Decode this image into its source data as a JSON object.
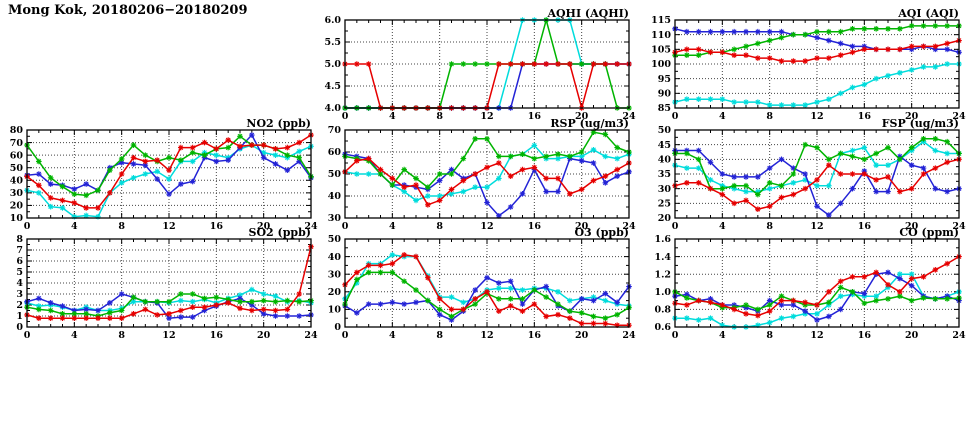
{
  "page_title": "Mong Kok, 20180206−20180209",
  "x_axis": {
    "x_start": 0,
    "x_step": 1,
    "min": 0,
    "max": 24,
    "major_ticks": [
      0,
      4,
      8,
      12,
      16,
      20,
      24
    ],
    "minor_step": 1,
    "unit": "hour"
  },
  "series_colors": {
    "red": "#e60000",
    "green": "#00b400",
    "blue": "#2323d6",
    "cyan": "#00dcdc"
  },
  "grid": {
    "style": "dotted",
    "color": "#444444"
  },
  "chart_data": [
    {
      "type": "line",
      "title": "AQHI (AQHI)",
      "ylim": [
        4.0,
        6.0
      ],
      "ytick_labels": [
        "4.0",
        "4.5",
        "5.0",
        "5.5",
        "6.0"
      ],
      "xtick_labels": [
        "0",
        "4",
        "8",
        "12",
        "16",
        "20",
        "24"
      ],
      "legend": "none",
      "series": [
        {
          "name": "red",
          "values": [
            5,
            5,
            5,
            4,
            4,
            4,
            4,
            4,
            4,
            4,
            4,
            4,
            4,
            5,
            5,
            5,
            5,
            5,
            5,
            5,
            4,
            5,
            5,
            5,
            5
          ]
        },
        {
          "name": "green",
          "values": [
            4,
            4,
            4,
            4,
            4,
            4,
            4,
            4,
            4,
            5,
            5,
            5,
            5,
            5,
            5,
            5,
            5,
            6,
            5,
            5,
            5,
            5,
            5,
            4,
            4
          ]
        },
        {
          "name": "blue",
          "values": [
            4,
            4,
            4,
            4,
            4,
            4,
            4,
            4,
            4,
            4,
            4,
            4,
            4,
            4,
            4,
            5,
            5,
            5,
            5,
            5,
            5,
            5,
            5,
            5,
            5
          ]
        },
        {
          "name": "cyan",
          "values": [
            4,
            4,
            4,
            4,
            4,
            4,
            4,
            4,
            4,
            4,
            4,
            4,
            4,
            4,
            5,
            6,
            6,
            6,
            6,
            6,
            5,
            5,
            5,
            5,
            5
          ]
        }
      ]
    },
    {
      "type": "line",
      "title": "AQI (AQI)",
      "ylim": [
        85,
        115
      ],
      "ytick_labels": [
        "85",
        "90",
        "95",
        "100",
        "105",
        "110",
        "115"
      ],
      "xtick_labels": [
        "0",
        "4",
        "8",
        "12",
        "16",
        "20",
        "24"
      ],
      "legend": "none",
      "series": [
        {
          "name": "red",
          "values": [
            104,
            105,
            105,
            104,
            104,
            103,
            103,
            102,
            102,
            101,
            101,
            101,
            102,
            102,
            103,
            104,
            105,
            105,
            105,
            105,
            106,
            106,
            106,
            107,
            108
          ]
        },
        {
          "name": "green",
          "values": [
            103,
            103,
            103,
            104,
            104,
            105,
            106,
            107,
            108,
            109,
            110,
            110,
            111,
            111,
            111,
            112,
            112,
            112,
            112,
            112,
            113,
            113,
            113,
            113,
            113
          ]
        },
        {
          "name": "blue",
          "values": [
            112,
            111,
            111,
            111,
            111,
            111,
            111,
            111,
            111,
            111,
            110,
            110,
            109,
            108,
            107,
            106,
            106,
            105,
            105,
            105,
            105,
            106,
            105,
            105,
            104
          ]
        },
        {
          "name": "cyan",
          "values": [
            87,
            88,
            88,
            88,
            88,
            87,
            87,
            87,
            86,
            86,
            86,
            86,
            87,
            88,
            90,
            92,
            93,
            95,
            96,
            97,
            98,
            99,
            99,
            100,
            100
          ]
        }
      ]
    },
    {
      "type": "line",
      "title": "NO2 (ppb)",
      "ylim": [
        10,
        80
      ],
      "ytick_labels": [
        "10",
        "20",
        "30",
        "40",
        "50",
        "60",
        "70",
        "80"
      ],
      "xtick_labels": [
        "0",
        "4",
        "8",
        "12",
        "16",
        "20",
        "24"
      ],
      "legend": "none",
      "series": [
        {
          "name": "red",
          "values": [
            43,
            36,
            26,
            24,
            22,
            18,
            18,
            30,
            45,
            58,
            55,
            56,
            48,
            66,
            66,
            70,
            65,
            72,
            67,
            68,
            68,
            65,
            66,
            70,
            76
          ]
        },
        {
          "name": "green",
          "values": [
            68,
            55,
            42,
            35,
            29,
            28,
            32,
            48,
            57,
            68,
            60,
            55,
            58,
            56,
            62,
            60,
            65,
            66,
            75,
            68,
            68,
            65,
            60,
            58,
            43
          ]
        },
        {
          "name": "blue",
          "values": [
            44,
            45,
            37,
            36,
            33,
            37,
            32,
            50,
            54,
            53,
            52,
            41,
            29,
            37,
            39,
            58,
            55,
            56,
            66,
            76,
            58,
            53,
            48,
            55,
            42
          ]
        },
        {
          "name": "cyan",
          "values": [
            32,
            30,
            19,
            18,
            11,
            12,
            11,
            30,
            38,
            42,
            45,
            47,
            41,
            55,
            55,
            62,
            60,
            58,
            65,
            68,
            62,
            60,
            58,
            63,
            67
          ]
        }
      ]
    },
    {
      "type": "line",
      "title": "RSP (ug/m3)",
      "ylim": [
        30,
        70
      ],
      "ytick_labels": [
        "30",
        "40",
        "50",
        "60",
        "70"
      ],
      "xtick_labels": [
        "0",
        "4",
        "8",
        "12",
        "16",
        "20",
        "24"
      ],
      "legend": "none",
      "series": [
        {
          "name": "red",
          "values": [
            51,
            56,
            57,
            52,
            48,
            44,
            45,
            36,
            38,
            43,
            47,
            50,
            53,
            55,
            49,
            52,
            53,
            48,
            48,
            41,
            43,
            47,
            49,
            52,
            55
          ]
        },
        {
          "name": "green",
          "values": [
            58,
            57,
            56,
            50,
            45,
            52,
            48,
            44,
            50,
            50,
            57,
            66,
            66,
            58,
            58,
            59,
            57,
            58,
            59,
            58,
            60,
            69,
            68,
            62,
            60
          ]
        },
        {
          "name": "blue",
          "values": [
            59,
            58,
            57,
            50,
            45,
            45,
            44,
            43,
            47,
            52,
            48,
            50,
            37,
            31,
            35,
            41,
            52,
            42,
            42,
            57,
            56,
            55,
            46,
            49,
            51
          ]
        },
        {
          "name": "cyan",
          "values": [
            51,
            50,
            50,
            50,
            45,
            42,
            38,
            40,
            40,
            41,
            42,
            44,
            44,
            48,
            58,
            59,
            63,
            57,
            57,
            58,
            58,
            61,
            58,
            57,
            59
          ]
        }
      ]
    },
    {
      "type": "line",
      "title": "FSP (ug/m3)",
      "ylim": [
        20,
        50
      ],
      "ytick_labels": [
        "20",
        "25",
        "30",
        "35",
        "40",
        "45",
        "50"
      ],
      "xtick_labels": [
        "0",
        "4",
        "8",
        "12",
        "16",
        "20",
        "24"
      ],
      "legend": "none",
      "series": [
        {
          "name": "red",
          "values": [
            31,
            32,
            32,
            30,
            28,
            25,
            26,
            23,
            24,
            27,
            28,
            30,
            33,
            38,
            35,
            35,
            35,
            33,
            34,
            29,
            30,
            35,
            37,
            39,
            40
          ]
        },
        {
          "name": "green",
          "values": [
            42,
            42,
            40,
            30,
            30,
            31,
            31,
            28,
            32,
            31,
            35,
            45,
            44,
            40,
            42,
            41,
            40,
            42,
            44,
            40,
            44,
            47,
            47,
            46,
            42
          ]
        },
        {
          "name": "blue",
          "values": [
            43,
            43,
            43,
            39,
            35,
            34,
            34,
            34,
            37,
            40,
            37,
            35,
            24,
            21,
            25,
            30,
            36,
            29,
            29,
            41,
            38,
            37,
            30,
            29,
            30
          ]
        },
        {
          "name": "cyan",
          "values": [
            38,
            37,
            37,
            33,
            31,
            30,
            29,
            29,
            30,
            31,
            32,
            33,
            31,
            31,
            42,
            43,
            44,
            38,
            38,
            40,
            43,
            46,
            43,
            42,
            42
          ]
        }
      ]
    },
    {
      "type": "line",
      "title": "SO2 (ppb)",
      "ylim": [
        0,
        8
      ],
      "ytick_labels": [
        "0",
        "1",
        "2",
        "3",
        "4",
        "5",
        "6",
        "7",
        "8"
      ],
      "xtick_labels": [
        "0",
        "4",
        "8",
        "12",
        "16",
        "20",
        "24"
      ],
      "legend": "none",
      "series": [
        {
          "name": "red",
          "values": [
            1.1,
            0.8,
            0.8,
            0.8,
            0.8,
            0.8,
            0.8,
            0.8,
            0.8,
            1.2,
            1.6,
            1.1,
            1.2,
            1.5,
            1.8,
            1.8,
            2.0,
            2.2,
            1.7,
            1.5,
            1.6,
            1.5,
            1.6,
            3.0,
            7.3
          ]
        },
        {
          "name": "green",
          "values": [
            1.8,
            1.6,
            1.5,
            1.2,
            1.2,
            1.2,
            1.0,
            1.3,
            1.5,
            2.7,
            2.3,
            2.3,
            2.3,
            3.0,
            3.0,
            2.6,
            2.7,
            2.5,
            2.3,
            2.3,
            2.4,
            2.3,
            2.4,
            2.3,
            2.4
          ]
        },
        {
          "name": "blue",
          "values": [
            2.3,
            2.6,
            2.2,
            1.9,
            1.5,
            1.6,
            1.5,
            2.2,
            3.0,
            2.7,
            2.3,
            2.2,
            0.8,
            0.9,
            0.9,
            1.5,
            1.9,
            2.3,
            2.6,
            2.0,
            1.2,
            1.0,
            1.0,
            1.0,
            1.1
          ]
        },
        {
          "name": "cyan",
          "values": [
            2.2,
            1.9,
            2.0,
            1.8,
            1.5,
            1.8,
            1.5,
            1.5,
            1.7,
            2.3,
            2.3,
            2.3,
            2.2,
            2.4,
            2.3,
            2.5,
            2.2,
            2.6,
            2.9,
            3.4,
            3.0,
            2.8,
            2.3,
            2.4,
            2.2
          ]
        }
      ]
    },
    {
      "type": "line",
      "title": "O3 (ppb)",
      "ylim": [
        0,
        50
      ],
      "ytick_labels": [
        "0",
        "10",
        "20",
        "30",
        "40",
        "50"
      ],
      "xtick_labels": [
        "0",
        "4",
        "8",
        "12",
        "16",
        "20",
        "24"
      ],
      "legend": "none",
      "series": [
        {
          "name": "red",
          "values": [
            24,
            31,
            35,
            35,
            36,
            41,
            40,
            28,
            16,
            10,
            10,
            16,
            20,
            9,
            12,
            9,
            13,
            6,
            7,
            5,
            2,
            2,
            2,
            1,
            1
          ]
        },
        {
          "name": "green",
          "values": [
            13,
            27,
            31,
            31,
            31,
            26,
            21,
            15,
            10,
            6,
            10,
            13,
            19,
            16,
            16,
            16,
            21,
            17,
            13,
            9,
            8,
            6,
            5,
            7,
            11
          ]
        },
        {
          "name": "blue",
          "values": [
            12,
            8,
            13,
            13,
            14,
            13,
            14,
            15,
            7,
            4,
            9,
            21,
            28,
            25,
            26,
            13,
            21,
            23,
            12,
            9,
            16,
            15,
            19,
            14,
            23
          ]
        },
        {
          "name": "cyan",
          "values": [
            16,
            25,
            36,
            36,
            41,
            40,
            40,
            29,
            17,
            17,
            14,
            16,
            21,
            22,
            22,
            21,
            22,
            22,
            20,
            15,
            16,
            17,
            15,
            13,
            12
          ]
        }
      ]
    },
    {
      "type": "line",
      "title": "CO (ppm)",
      "ylim": [
        0.6,
        1.6
      ],
      "ytick_labels": [
        "0.6",
        "0.8",
        "1.0",
        "1.2",
        "1.4",
        "1.6"
      ],
      "xtick_labels": [
        "0",
        "4",
        "8",
        "12",
        "16",
        "20",
        "24"
      ],
      "legend": "none",
      "series": [
        {
          "name": "red",
          "values": [
            0.87,
            0.85,
            0.9,
            0.88,
            0.85,
            0.8,
            0.75,
            0.73,
            0.78,
            0.9,
            0.9,
            0.88,
            0.85,
            1.0,
            1.12,
            1.17,
            1.17,
            1.22,
            1.08,
            1.0,
            1.15,
            1.17,
            1.25,
            1.32,
            1.4
          ]
        },
        {
          "name": "green",
          "values": [
            1.0,
            0.93,
            0.9,
            0.88,
            0.82,
            0.82,
            0.85,
            0.8,
            0.85,
            0.95,
            0.9,
            0.85,
            0.85,
            0.88,
            1.05,
            1.0,
            0.87,
            0.9,
            0.92,
            0.95,
            0.9,
            0.93,
            0.92,
            0.92,
            0.93
          ]
        },
        {
          "name": "blue",
          "values": [
            0.95,
            0.97,
            0.9,
            0.92,
            0.85,
            0.85,
            0.82,
            0.78,
            0.9,
            0.85,
            0.85,
            0.78,
            0.68,
            0.72,
            0.8,
            1.0,
            0.98,
            1.2,
            1.22,
            1.15,
            1.07,
            0.95,
            0.92,
            0.95,
            0.9
          ]
        },
        {
          "name": "cyan",
          "values": [
            0.7,
            0.7,
            0.68,
            0.7,
            0.62,
            0.6,
            0.6,
            0.62,
            0.65,
            0.7,
            0.72,
            0.75,
            0.75,
            0.85,
            0.95,
            0.97,
            0.95,
            0.95,
            1.05,
            1.2,
            1.2,
            0.95,
            0.92,
            0.95,
            1.0
          ]
        }
      ]
    }
  ]
}
